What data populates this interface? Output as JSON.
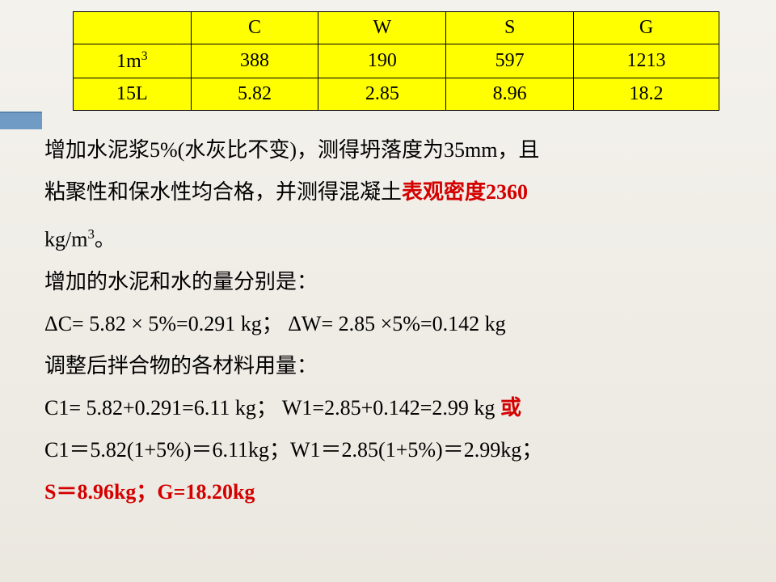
{
  "table": {
    "background": "#ffff00",
    "border_color": "#000000",
    "headers": [
      "",
      "C",
      "W",
      "S",
      "G"
    ],
    "rows": [
      [
        "1m³",
        "388",
        "190",
        "597",
        "1213"
      ],
      [
        "15L",
        "5.82",
        "2.85",
        "8.96",
        "18.2"
      ]
    ]
  },
  "body": {
    "p1a": "增加水泥浆5%(水灰比不变)，测得坍落度为35mm，且",
    "p1b": "粘聚性和保水性均合格，并测得混凝土",
    "p1c_red": "表观密度2360",
    "p1d": "kg/m",
    "p1d_sup": "3",
    "p1e": "。",
    "p2": "增加的水泥和水的量分别是：",
    "p3": "ΔC= 5.82 × 5%=0.291 kg； ΔW= 2.85 ×5%=0.142 kg",
    "p4": "调整后拌合物的各材料用量：",
    "p5a": "C1= 5.82+0.291=6.11 kg； W1=2.85+0.142=2.99 kg  ",
    "p5b_red": "或",
    "p6": "C1＝5.82(1+5%)＝6.11kg；W1＝2.85(1+5%)＝2.99kg；",
    "p7_red": "S＝8.96kg；G=18.20kg"
  },
  "colors": {
    "accent": "#6f9bc4",
    "red": "#d40000",
    "table_bg": "#ffff00"
  }
}
